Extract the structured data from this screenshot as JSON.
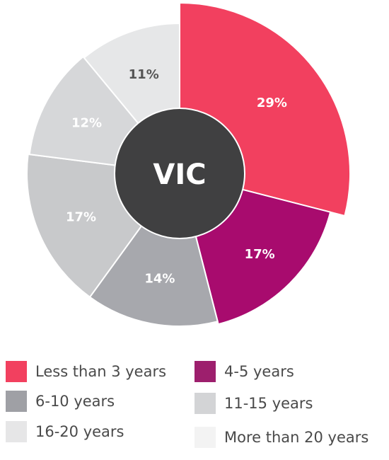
{
  "chart_data": {
    "type": "pie",
    "variant": "polar-area-with-center-label",
    "center_label": "VIC",
    "slices": [
      {
        "label": "Less than 3 years",
        "value": 29,
        "value_label": "29%",
        "color": "#f2405f",
        "text_color": "#ffffff"
      },
      {
        "label": "4-5 years",
        "value": 17,
        "value_label": "17%",
        "color": "#a80b6e",
        "text_color": "#ffffff"
      },
      {
        "label": "6-10 years",
        "value": 14,
        "value_label": "14%",
        "color": "#a7a8ad",
        "text_color": "#ffffff"
      },
      {
        "label": "11-15 years",
        "value": 17,
        "value_label": "17%",
        "color": "#c8c9cb",
        "text_color": "#ffffff"
      },
      {
        "label": "16-20 years",
        "value": 12,
        "value_label": "12%",
        "color": "#d6d7d9",
        "text_color": "#ffffff"
      },
      {
        "label": "More than 20 years",
        "value": 11,
        "value_label": "11%",
        "color": "#e6e7e8",
        "text_color": "#555555"
      }
    ],
    "legend_placement": "bottom",
    "center_color": "#404041"
  },
  "legend": {
    "items": [
      {
        "label": "Less than 3 years",
        "color": "#f2405f"
      },
      {
        "label": "4-5 years",
        "color": "#9d1f6d"
      },
      {
        "label": "6-10 years",
        "color": "#9fa0a5"
      },
      {
        "label": "11-15 years",
        "color": "#d3d4d6"
      },
      {
        "label": "16-20 years",
        "color": "#e6e6e7"
      },
      {
        "label": "More than 20 years",
        "color": "#f3f3f3"
      }
    ]
  }
}
